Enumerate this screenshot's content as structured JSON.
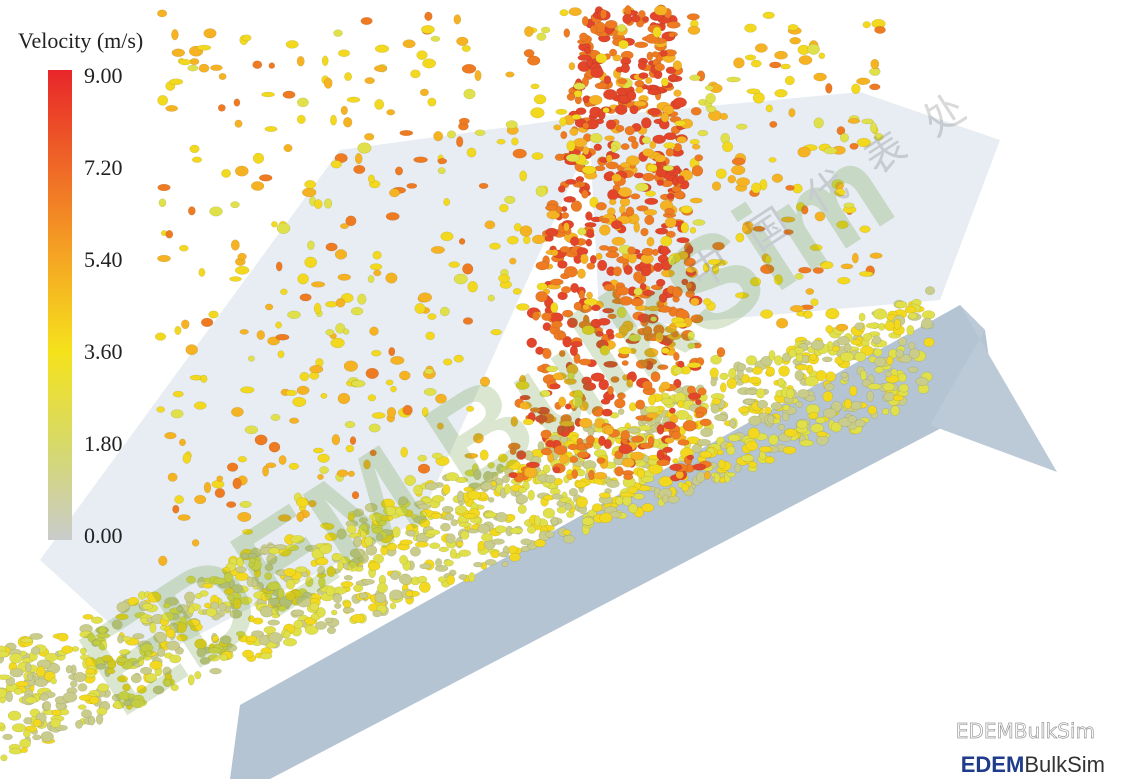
{
  "legend": {
    "title": "Velocity (m/s)",
    "ticks": [
      "9.00",
      "7.20",
      "5.40",
      "3.60",
      "1.80",
      "0.00"
    ]
  },
  "watermark": {
    "diagonal": "EDEM BulkSim",
    "office": "中国代表处"
  },
  "footer": {
    "account": "EDEMBulkSim",
    "logo_bold": "EDEM",
    "logo_rest": "BulkSim"
  }
}
